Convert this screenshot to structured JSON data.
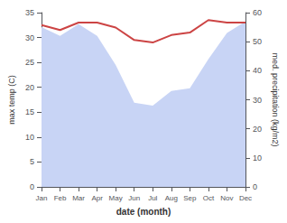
{
  "chart_data": {
    "type": "line",
    "xlabel": "date (month)",
    "ylabel": "max temp (C)",
    "y2label": "med. precipitation (kg/m2)",
    "categories": [
      "Jan",
      "Feb",
      "Mar",
      "Apr",
      "May",
      "Jun",
      "Jul",
      "Aug",
      "Sep",
      "Oct",
      "Nov",
      "Dec"
    ],
    "series": [
      {
        "type": "area",
        "axis": "y2",
        "color": "#c8d4f5",
        "values": [
          55,
          52,
          56,
          52,
          42,
          29,
          28,
          33,
          34,
          44,
          53,
          57
        ]
      },
      {
        "type": "line",
        "color": "#cc4444",
        "values": [
          32.5,
          31.5,
          33.0,
          33.0,
          32.0,
          29.5,
          29.0,
          30.5,
          31.0,
          33.5,
          33.0,
          33.0
        ]
      }
    ],
    "ylim": [
      0,
      35
    ],
    "yticks": [
      0,
      5,
      10,
      15,
      20,
      25,
      30,
      35
    ],
    "y2lim": [
      0,
      60
    ],
    "y2ticks": [
      0,
      10,
      20,
      30,
      40,
      50,
      60
    ],
    "grid": false
  }
}
